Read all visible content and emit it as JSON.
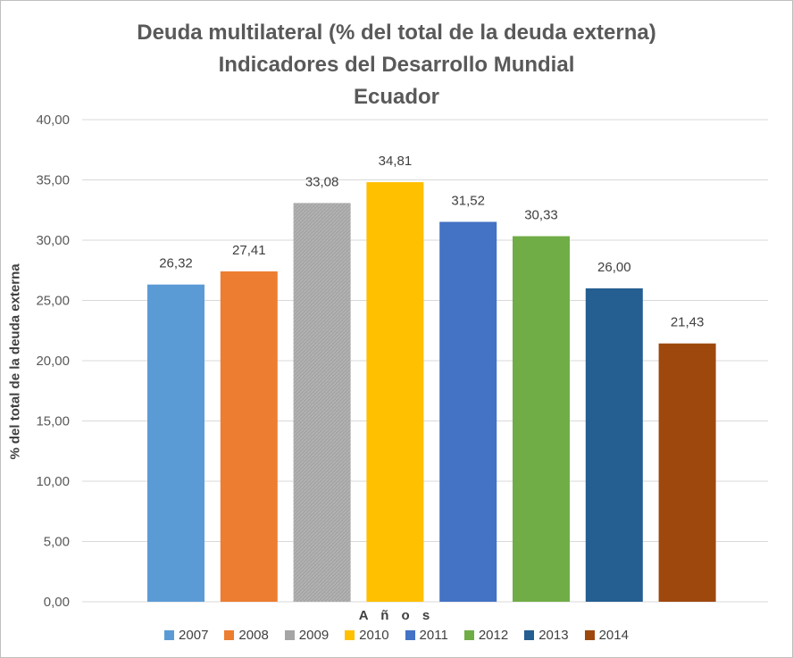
{
  "chart_data": {
    "type": "bar",
    "title": [
      "Deuda multilateral (% del total de la deuda externa)",
      "Indicadores del Desarrollo Mundial",
      "Ecuador"
    ],
    "xlabel": "A ñ o s",
    "ylabel": "% del total de la deuda externa",
    "ylim": [
      0,
      40
    ],
    "yticks": [
      "0,00",
      "5,00",
      "10,00",
      "15,00",
      "20,00",
      "25,00",
      "30,00",
      "35,00",
      "40,00"
    ],
    "categories": [
      "2007",
      "2008",
      "2009",
      "2010",
      "2011",
      "2012",
      "2013",
      "2014"
    ],
    "values": [
      26.32,
      27.41,
      33.08,
      34.81,
      31.52,
      30.33,
      26.0,
      21.43
    ],
    "data_labels": [
      "26,32",
      "27,41",
      "33,08",
      "34,81",
      "31,52",
      "30,33",
      "26,00",
      "21,43"
    ],
    "colors": [
      "#5b9bd5",
      "#ed7d31",
      "#a5a5a5",
      "#ffc000",
      "#4472c4",
      "#70ad47",
      "#255e91",
      "#9e480e"
    ],
    "grid": true,
    "legend": "bottom"
  }
}
